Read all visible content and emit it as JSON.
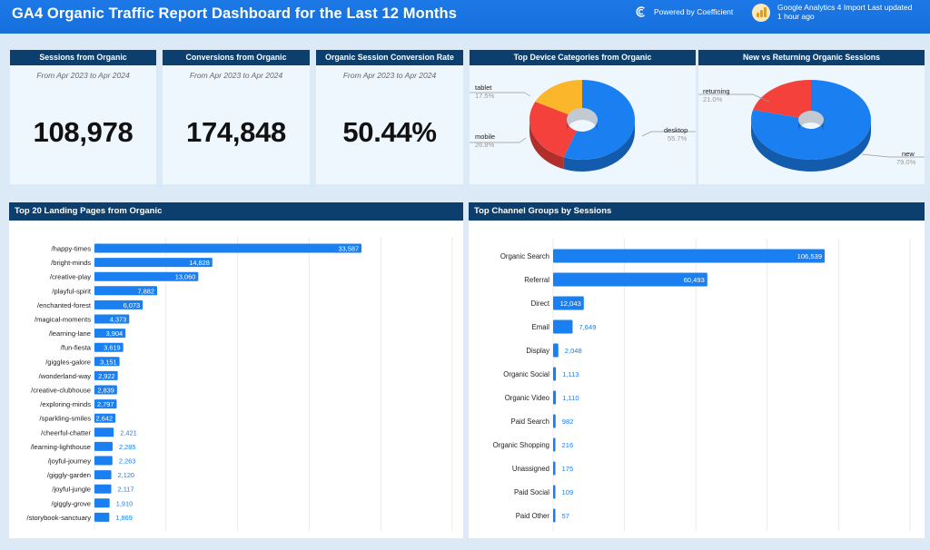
{
  "header": {
    "title": "GA4 Organic Traffic Report Dashboard for the Last 12 Months",
    "powered_by": "Powered by Coefficient",
    "import_line1": "Google Analytics 4 Import Last updated",
    "import_line2": "1 hour ago"
  },
  "kpis": [
    {
      "title": "Sessions from Organic",
      "subtitle": "From Apr 2023 to Apr 2024",
      "value": "108,978"
    },
    {
      "title": "Conversions from Organic",
      "subtitle": "From Apr 2023 to Apr 2024",
      "value": "174,848"
    },
    {
      "title": "Organic Session Conversion Rate",
      "subtitle": "From Apr 2023 to Apr 2024",
      "value": "50.44%"
    }
  ],
  "device_pie": {
    "title": "Top Device Categories from Organic",
    "slices": [
      {
        "label": "desktop",
        "pct": "55.7%",
        "value": 55.7,
        "color": "#1a7ff0"
      },
      {
        "label": "mobile",
        "pct": "26.8%",
        "value": 26.8,
        "color": "#f5413c"
      },
      {
        "label": "tablet",
        "pct": "17.5%",
        "value": 17.5,
        "color": "#fbb62c"
      }
    ]
  },
  "newret_pie": {
    "title": "New vs Returning Organic Sessions",
    "slices": [
      {
        "label": "new",
        "pct": "79.0%",
        "value": 79.0,
        "color": "#1a7ff0"
      },
      {
        "label": "returning",
        "pct": "21.0%",
        "value": 21.0,
        "color": "#f5413c"
      }
    ]
  },
  "landing": {
    "title": "Top 20 Landing Pages from Organic"
  },
  "channels": {
    "title": "Top Channel Groups by Sessions"
  },
  "chart_data": [
    {
      "type": "bar",
      "title": "Top 20 Landing Pages from Organic",
      "orientation": "horizontal",
      "bar_color": "#1a7ff0",
      "categories": [
        "/happy-times",
        "/bright-minds",
        "/creative-play",
        "/playful-spirit",
        "/enchanted-forest",
        "/magical-moments",
        "/learning-lane",
        "/fun-fiesta",
        "/giggles-galore",
        "/wonderland-way",
        "/creative-clubhouse",
        "/exploring-minds",
        "/sparkling-smiles",
        "/cheerful-chatter",
        "/learning-lighthouse",
        "/joyful-journey",
        "/giggly-garden",
        "/joyful-jungle",
        "/giggly-grove",
        "/storybook-sanctuary"
      ],
      "values": [
        33587,
        14828,
        13060,
        7882,
        6073,
        4373,
        3904,
        3619,
        3151,
        2922,
        2839,
        2797,
        2642,
        2421,
        2285,
        2263,
        2120,
        2117,
        1910,
        1869
      ],
      "labels": [
        "33,587",
        "14,828",
        "13,060",
        "7,882",
        "6,073",
        "4,373",
        "3,904",
        "3,619",
        "3,151",
        "2,922",
        "2,839",
        "2,797",
        "2,642",
        "2,421",
        "2,285",
        "2,263",
        "2,120",
        "2,117",
        "1,910",
        "1,869"
      ],
      "xlim": [
        0,
        45000
      ]
    },
    {
      "type": "bar",
      "title": "Top Channel Groups by Sessions",
      "orientation": "horizontal",
      "bar_color": "#1a7ff0",
      "categories": [
        "Organic Search",
        "Referral",
        "Direct",
        "Email",
        "Display",
        "Organic Social",
        "Organic Video",
        "Paid Search",
        "Organic Shopping",
        "Unassigned",
        "Paid Social",
        "Paid Other"
      ],
      "values": [
        106539,
        60493,
        12043,
        7649,
        2048,
        1113,
        1110,
        982,
        216,
        175,
        109,
        57
      ],
      "labels": [
        "106,539",
        "60,493",
        "12,043",
        "7,649",
        "2,048",
        "1,113",
        "1,110",
        "982",
        "216",
        "175",
        "109",
        "57"
      ],
      "xlim": [
        0,
        140000
      ]
    }
  ]
}
